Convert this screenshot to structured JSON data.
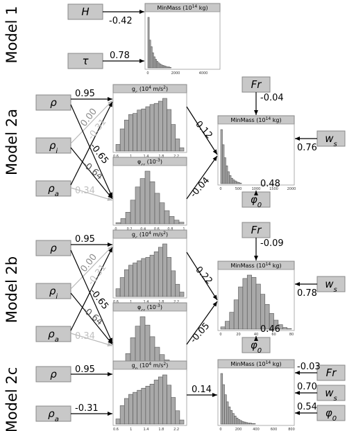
{
  "models": [
    {
      "label": "Model 1",
      "inputs": [
        "H",
        "τ"
      ],
      "coefs": [
        "-0.42",
        "0.78"
      ]
    },
    {
      "label": "Model 2a",
      "inputs": [
        "ρ",
        "ρ",
        "ρ"
      ],
      "input_subs": [
        "",
        "i",
        "a"
      ],
      "coefs_g": [
        "0.95",
        "0.00",
        "-0.64"
      ],
      "coefs_phi": [
        "-0.65",
        "-0.31",
        "0.34"
      ],
      "coef_g_out": "0.12",
      "coef_phi_out": "-0.04",
      "fr": "Fr",
      "fr_coef": "-0.04",
      "ws": "w",
      "ws_sub": "s",
      "ws_coef": "0.76",
      "phi0": "φ",
      "phi0_sub": "0",
      "phi0_coef": "0.48"
    },
    {
      "label": "Model 2b",
      "inputs": [
        "ρ",
        "ρ",
        "ρ"
      ],
      "input_subs": [
        "",
        "i",
        "a"
      ],
      "coefs_g": [
        "0.95",
        "0.00",
        "-0.64"
      ],
      "coefs_phi": [
        "-0.65",
        "-0.31",
        "0.34"
      ],
      "coef_g_out": "0.22",
      "coef_phi_out": "-0.05",
      "fr": "Fr",
      "fr_coef": "-0.09",
      "ws": "w",
      "ws_sub": "s",
      "ws_coef": "0.78",
      "phi0": "φ",
      "phi0_sub": "0",
      "phi0_coef": "0.46"
    },
    {
      "label": "Model 2c",
      "inputs": [
        "ρ",
        "ρ"
      ],
      "input_subs": [
        "",
        "a"
      ],
      "coefs": [
        "0.95",
        "-0.31"
      ],
      "coef_g_out": "0.14",
      "right": [
        {
          "name": "Fr",
          "sub": "",
          "coef": "-0.03"
        },
        {
          "name": "w",
          "sub": "s",
          "coef": "0.70"
        },
        {
          "name": "φ",
          "sub": "0",
          "coef": "0.54"
        }
      ]
    }
  ],
  "chart_data": [
    {
      "id": "m1",
      "type": "bar",
      "title_main": "MinMass (10",
      "title_sup": "14",
      "title_end": " kg)",
      "xticks": [
        "0",
        "2000",
        "4000"
      ],
      "xlim": [
        0,
        5000
      ],
      "bins": [
        0,
        100,
        200,
        300,
        400,
        500,
        600,
        700,
        800,
        900,
        1000,
        1100,
        1200,
        1300,
        1400,
        1500
      ],
      "values": [
        100,
        55,
        42,
        30,
        22,
        17,
        13,
        10,
        8,
        6,
        5,
        4,
        3,
        2,
        2,
        1
      ]
    },
    {
      "id": "g2a",
      "type": "bar",
      "title_main": "g",
      "title_sub": "c",
      "title_mid": " (10",
      "title_sup": "4",
      "title_end": " m/s",
      "title_sup2": "2",
      "title_close": ")",
      "xticks": [
        "0.6",
        "1",
        "1.4",
        "1.8",
        "2.2"
      ],
      "xlim": [
        0.6,
        2.4
      ],
      "values": [
        12,
        40,
        56,
        66,
        68,
        74,
        76,
        80,
        84,
        86,
        90,
        95,
        75,
        48,
        22,
        6
      ]
    },
    {
      "id": "p2a",
      "type": "bar",
      "title_main": "φ",
      "title_sub": "cr",
      "title_mid": " (10",
      "title_sup": "-3",
      "title_close": ")",
      "xticks": [
        "0",
        "0.2",
        "0.4",
        "0.6",
        "0.8",
        "1"
      ],
      "xlim": [
        0,
        1
      ],
      "values": [
        2,
        10,
        22,
        45,
        70,
        86,
        100,
        80,
        58,
        40,
        25,
        14,
        7,
        3
      ]
    },
    {
      "id": "m2a",
      "type": "bar",
      "title_main": "MinMass (10",
      "title_sup": "14",
      "title_end": " kg)",
      "xticks": [
        "0",
        "500",
        "1000",
        "1500",
        "2000"
      ],
      "xlim": [
        0,
        2000
      ],
      "values": [
        100,
        72,
        48,
        33,
        22,
        15,
        10,
        7,
        5,
        3,
        2,
        1
      ]
    },
    {
      "id": "g2b",
      "type": "bar",
      "title_main": "g",
      "title_sub": "c",
      "title_mid": " (10",
      "title_sup": "4",
      "title_end": " m/s",
      "title_sup2": "2",
      "title_close": ")",
      "xticks": [
        "0.6",
        "1",
        "1.4",
        "1.8",
        "2.2"
      ],
      "xlim": [
        0.6,
        2.4
      ],
      "values": [
        14,
        34,
        48,
        56,
        60,
        64,
        68,
        70,
        74,
        80,
        88,
        94,
        70,
        46,
        22,
        8
      ]
    },
    {
      "id": "p2b",
      "type": "bar",
      "title_main": "φ",
      "title_sub": "cr",
      "title_mid": " (10",
      "title_sup": "-3",
      "title_close": ")",
      "xticks": [
        "0",
        "0.2",
        "0.4",
        "0.6",
        "0.8",
        "1"
      ],
      "xlim": [
        0,
        1
      ],
      "values": [
        3,
        12,
        30,
        60,
        82,
        100,
        84,
        62,
        42,
        28,
        18,
        10,
        5,
        2
      ]
    },
    {
      "id": "m2b",
      "type": "bar",
      "title_main": "MinMass (10",
      "title_sup": "14",
      "title_end": " kg)",
      "xticks": [
        "0",
        "20",
        "40",
        "60",
        "80"
      ],
      "xlim": [
        0,
        80
      ],
      "values": [
        4,
        14,
        30,
        52,
        75,
        90,
        96,
        92,
        80,
        62,
        44,
        28,
        16,
        8,
        3,
        1
      ]
    },
    {
      "id": "g2c",
      "type": "bar",
      "title_main": "g",
      "title_sub": "p",
      "title_mid": " (10",
      "title_sup": "4",
      "title_end": " m/s",
      "title_sup2": "2",
      "title_close": ")",
      "xticks": [
        "0.6",
        "1",
        "1.4",
        "1.8",
        "2.2"
      ],
      "xlim": [
        0.6,
        2.4
      ],
      "values": [
        10,
        36,
        50,
        58,
        62,
        66,
        70,
        74,
        78,
        86,
        92,
        96,
        76,
        52,
        26,
        8
      ]
    },
    {
      "id": "m2c",
      "type": "bar",
      "title_main": "MinMass (10",
      "title_sup": "14",
      "title_end": " kg)",
      "xticks": [
        "0",
        "200",
        "400",
        "600",
        "800"
      ],
      "xlim": [
        0,
        800
      ],
      "values": [
        100,
        78,
        58,
        44,
        34,
        27,
        21,
        16,
        12,
        9,
        7,
        5,
        4,
        3,
        2,
        2,
        1,
        1
      ]
    }
  ]
}
